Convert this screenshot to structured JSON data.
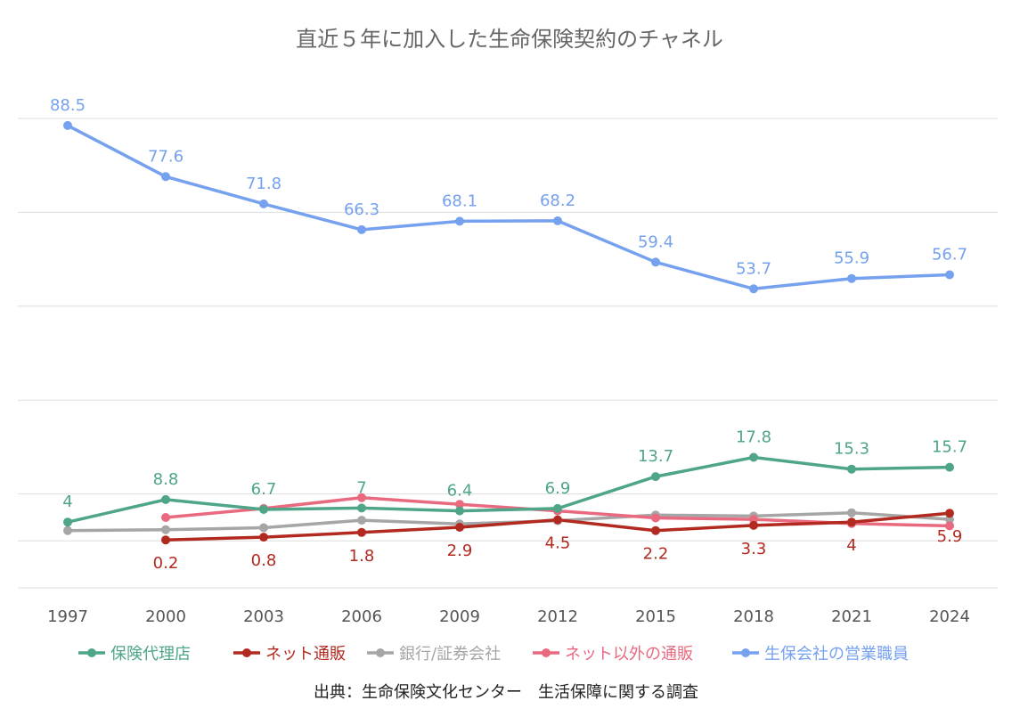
{
  "chart_data": {
    "type": "line",
    "title": "直近５年に加入した生命保険契約のチャネル",
    "source": "出典：生命保険文化センター　生活保障に関する調査",
    "x": [
      "1997",
      "2000",
      "2003",
      "2006",
      "2009",
      "2012",
      "2015",
      "2018",
      "2021",
      "2024"
    ],
    "ylim": [
      -10,
      100
    ],
    "grid": true,
    "legend_position": "bottom",
    "series": [
      {
        "name": "保険代理店",
        "color": "#4ea587",
        "values": [
          4,
          8.8,
          6.7,
          7,
          6.4,
          6.9,
          13.7,
          17.8,
          15.3,
          15.7
        ],
        "labels": [
          "4",
          "8.8",
          "6.7",
          "7",
          "6.4",
          "6.9",
          "13.7",
          "17.8",
          "15.3",
          "15.7"
        ],
        "label_pos": "above"
      },
      {
        "name": "ネット通販",
        "color": "#b22a1f",
        "values": [
          null,
          0.2,
          0.8,
          1.8,
          2.9,
          4.5,
          2.2,
          3.3,
          4,
          5.9
        ],
        "labels": [
          "",
          "0.2",
          "0.8",
          "1.8",
          "2.9",
          "4.5",
          "2.2",
          "3.3",
          "4",
          "5.9"
        ],
        "label_pos": "below"
      },
      {
        "name": "銀行/証券会社",
        "color": "#a6a6a6",
        "values": [
          2.2,
          2.4,
          2.8,
          4.4,
          3.6,
          4.3,
          5.5,
          5.3,
          6.0,
          4.6
        ],
        "labels": [],
        "label_pos": "none"
      },
      {
        "name": "ネット以外の通販",
        "color": "#e9697f",
        "values": [
          null,
          5.0,
          6.9,
          9.2,
          7.8,
          6.4,
          4.9,
          4.6,
          3.7,
          3.2
        ],
        "labels": [],
        "label_pos": "none"
      },
      {
        "name": "生保会社の営業職員",
        "color": "#76a1ee",
        "values": [
          88.5,
          77.6,
          71.8,
          66.3,
          68.1,
          68.2,
          59.4,
          53.7,
          55.9,
          56.7
        ],
        "labels": [
          "88.5",
          "77.6",
          "71.8",
          "66.3",
          "68.1",
          "68.2",
          "59.4",
          "53.7",
          "55.9",
          "56.7"
        ],
        "label_pos": "above"
      }
    ]
  }
}
